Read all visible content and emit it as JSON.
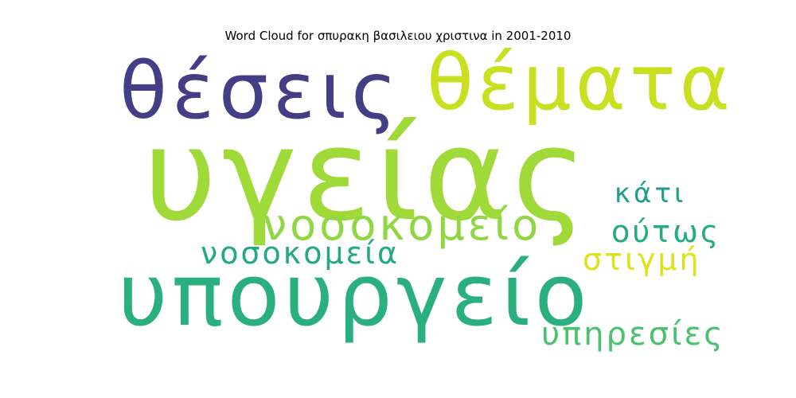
{
  "title": "Word Cloud for σπυρακη βασιλειου χριστινα in 2001-2010",
  "words": [
    {
      "text": "υγείας",
      "color": "#a0da39"
    },
    {
      "text": "υπουργείο",
      "color": "#2ab07f"
    },
    {
      "text": "θέσεις",
      "color": "#433e85"
    },
    {
      "text": "θέματα",
      "color": "#c8e020"
    },
    {
      "text": "νοσοκομείο",
      "color": "#90d743"
    },
    {
      "text": "νοσοκομεία",
      "color": "#22a884"
    },
    {
      "text": "υπηρεσίες",
      "color": "#4ac16d"
    },
    {
      "text": "κάτι",
      "color": "#1f9e89"
    },
    {
      "text": "ούτως",
      "color": "#25ab82"
    },
    {
      "text": "στιγμή",
      "color": "#dde318"
    }
  ]
}
